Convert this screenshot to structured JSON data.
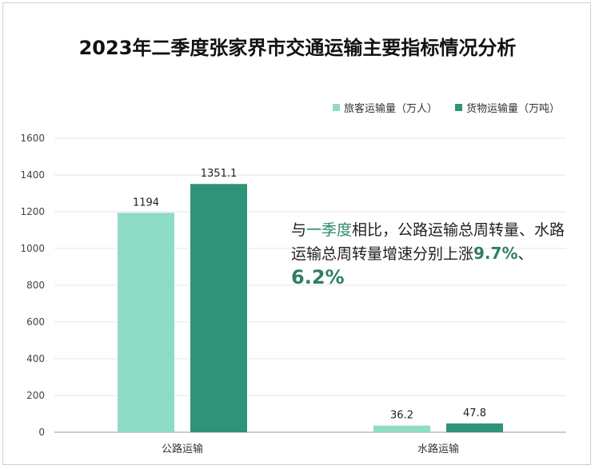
{
  "title": "2023年二季度张家界市交通运输主要指标情况分析",
  "colors": {
    "passenger": "#8edbc6",
    "freight": "#2f937a",
    "highlight": "#2e8a6e"
  },
  "chart_data": {
    "type": "bar",
    "title": "2023年二季度张家界市交通运输主要指标情况分析",
    "categories": [
      "公路运输",
      "水路运输"
    ],
    "series": [
      {
        "name": "旅客运输量（万人）",
        "values": [
          1194,
          36.2
        ],
        "labels": [
          "1194",
          "36.2"
        ]
      },
      {
        "name": "货物运输量（万吨）",
        "values": [
          1351.1,
          47.8
        ],
        "labels": [
          "1351.1",
          "47.8"
        ]
      }
    ],
    "ylim": [
      0,
      1600
    ],
    "yticks": [
      0,
      200,
      400,
      600,
      800,
      1000,
      1200,
      1400,
      1600
    ],
    "grid": true,
    "legend_position": "top-right"
  },
  "annotation": {
    "part1": "与",
    "part2": "一季度",
    "part3": "相比，公路运输总周转量、水路运输总周转量增速分别上涨",
    "pct1": "9.7%",
    "sep": "、",
    "pct2": "6.2%"
  }
}
